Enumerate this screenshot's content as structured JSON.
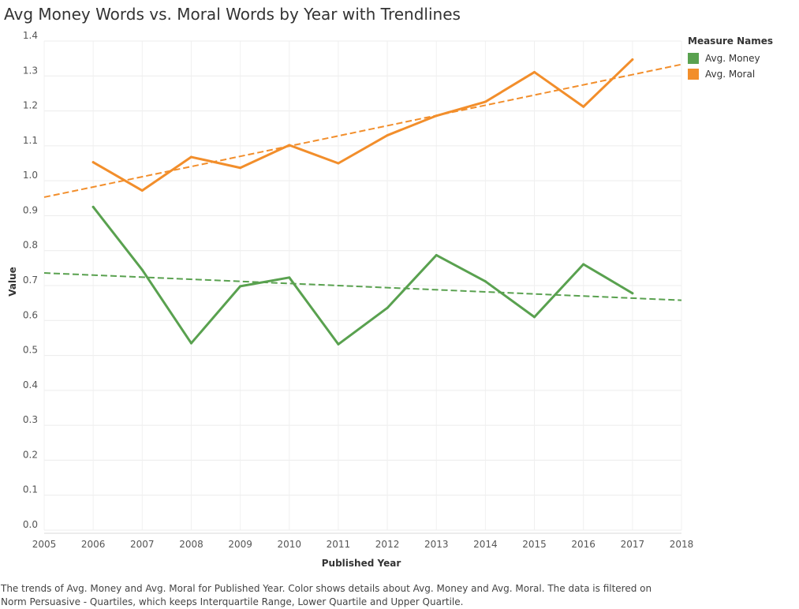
{
  "chart_data": {
    "type": "line",
    "title": "Avg Money Words vs. Moral Words by Year with Trendlines",
    "xlabel": "Published Year",
    "ylabel": "Value",
    "xlim": [
      2005,
      2018
    ],
    "ylim": [
      0,
      1.4
    ],
    "x_ticks": [
      2005,
      2006,
      2007,
      2008,
      2009,
      2010,
      2011,
      2012,
      2013,
      2014,
      2015,
      2016,
      2017,
      2018
    ],
    "y_ticks": [
      0.0,
      0.1,
      0.2,
      0.3,
      0.4,
      0.5,
      0.6,
      0.7,
      0.8,
      0.9,
      1.0,
      1.1,
      1.2,
      1.3,
      1.4
    ],
    "x": [
      2006,
      2007,
      2008,
      2009,
      2010,
      2011,
      2012,
      2013,
      2014,
      2015,
      2016,
      2017
    ],
    "series": [
      {
        "name": "Avg. Money",
        "color": "#59a14f",
        "values": [
          0.925,
          0.745,
          0.535,
          0.698,
          0.723,
          0.532,
          0.636,
          0.787,
          0.712,
          0.61,
          0.761,
          0.678
        ],
        "trendline": {
          "x": [
            2005,
            2018
          ],
          "y": [
            0.736,
            0.658
          ]
        }
      },
      {
        "name": "Avg. Moral",
        "color": "#f28e2b",
        "values": [
          1.053,
          0.972,
          1.068,
          1.037,
          1.102,
          1.05,
          1.13,
          1.186,
          1.226,
          1.311,
          1.212,
          1.347
        ],
        "trendline": {
          "x": [
            2005,
            2018
          ],
          "y": [
            0.953,
            1.333
          ]
        }
      }
    ],
    "legend": {
      "title": "Measure Names",
      "position": "right"
    },
    "grid": true
  },
  "caption": "The trends of Avg. Money and Avg. Moral for Published Year.  Color shows details about Avg. Money and Avg. Moral. The data is filtered on Norm Persuasive - Quartiles, which keeps Interquartile Range, Lower Quartile and Upper Quartile."
}
